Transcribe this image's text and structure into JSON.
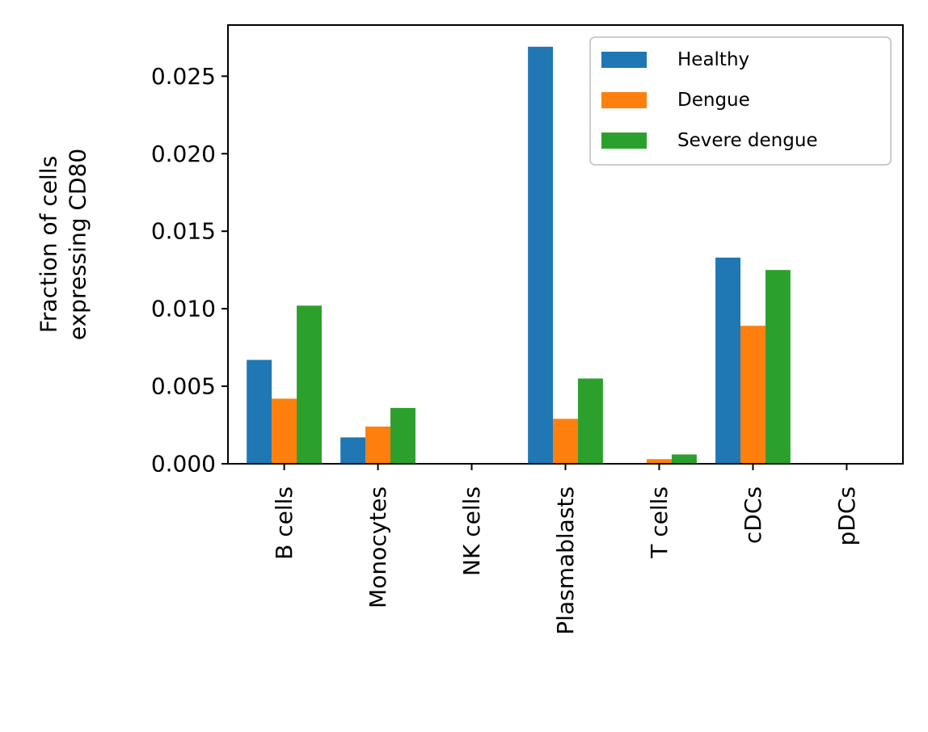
{
  "chart_data": {
    "type": "bar",
    "title": "",
    "xlabel": "",
    "ylabel_lines": [
      "Fraction of cells",
      "expressing CD80"
    ],
    "categories": [
      "B cells",
      "Monocytes",
      "NK cells",
      "Plasmablasts",
      "T cells",
      "cDCs",
      "pDCs"
    ],
    "series": [
      {
        "name": "Healthy",
        "color": "#1f77b4",
        "values": [
          0.0067,
          0.0017,
          0.0,
          0.0269,
          0.0,
          0.0133,
          0.0
        ]
      },
      {
        "name": "Dengue",
        "color": "#ff7f0e",
        "values": [
          0.0042,
          0.0024,
          0.0,
          0.0029,
          0.0003,
          0.0089,
          0.0
        ]
      },
      {
        "name": "Severe dengue",
        "color": "#2ca02c",
        "values": [
          0.0102,
          0.0036,
          0.0,
          0.0055,
          0.0006,
          0.0125,
          0.0
        ]
      }
    ],
    "ylim": [
      0,
      0.0283
    ],
    "yticks": [
      0.0,
      0.005,
      0.01,
      0.015,
      0.02,
      0.025
    ],
    "ytick_labels": [
      "0.000",
      "0.005",
      "0.010",
      "0.015",
      "0.020",
      "0.025"
    ],
    "legend_position": "upper-right",
    "grid": false
  }
}
